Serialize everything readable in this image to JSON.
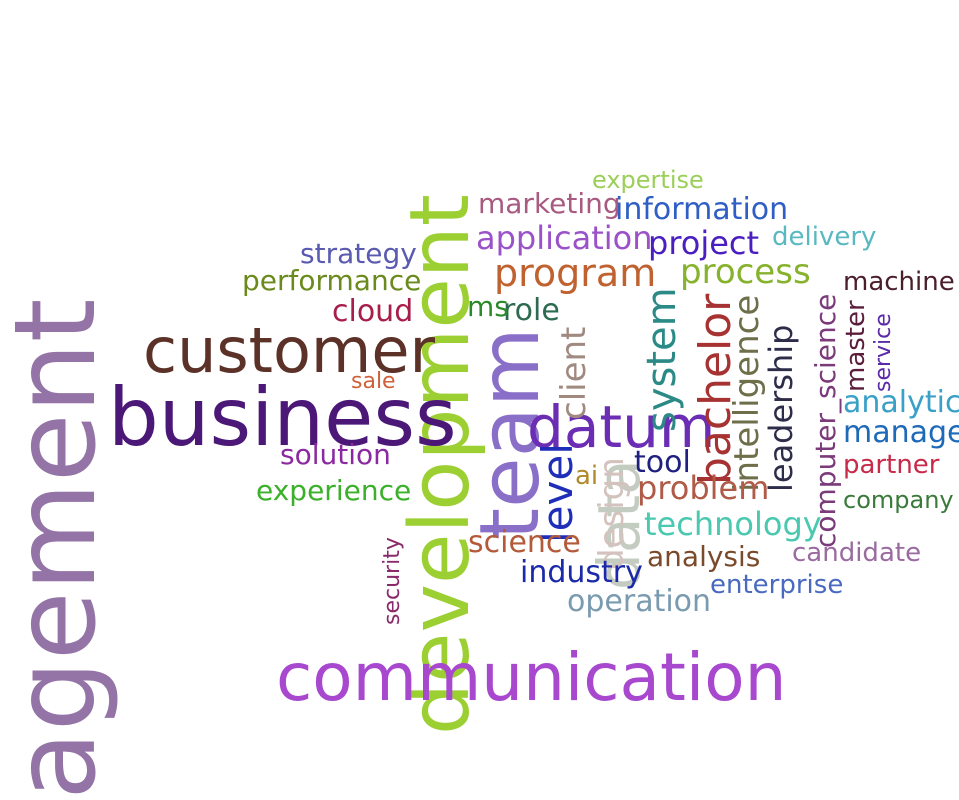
{
  "words": [
    {
      "text": "agement",
      "color": "#9474a6",
      "rotated": true
    },
    {
      "text": "development",
      "color": "#9bcf32",
      "rotated": true
    },
    {
      "text": "communication",
      "color": "#a748cf",
      "rotated": false
    },
    {
      "text": "business",
      "color": "#4b1878",
      "rotated": false
    },
    {
      "text": "customer",
      "color": "#5c3228",
      "rotated": false
    },
    {
      "text": "team",
      "color": "#8a6fc9",
      "rotated": true
    },
    {
      "text": "datum",
      "color": "#6b2db3",
      "rotated": false
    },
    {
      "text": "data",
      "color": "#c4ccc1",
      "rotated": true
    },
    {
      "text": "level",
      "color": "#1f2eb8",
      "rotated": true
    },
    {
      "text": "bachelor",
      "color": "#a63232",
      "rotated": true
    },
    {
      "text": "system",
      "color": "#2b8a86",
      "rotated": true
    },
    {
      "text": "intelligence",
      "color": "#6e6e4a",
      "rotated": true
    },
    {
      "text": "leadership",
      "color": "#2d2d4a",
      "rotated": true
    },
    {
      "text": "program",
      "color": "#c0622f",
      "rotated": false
    },
    {
      "text": "process",
      "color": "#86b22d",
      "rotated": false
    },
    {
      "text": "client",
      "color": "#a08a80",
      "rotated": true
    },
    {
      "text": "design",
      "color": "#d3c2bd",
      "rotated": true
    },
    {
      "text": "computer_science",
      "color": "#7b3a7a",
      "rotated": true
    },
    {
      "text": "technology",
      "color": "#4ac9b0",
      "rotated": false
    },
    {
      "text": "problem",
      "color": "#b05a48",
      "rotated": false
    },
    {
      "text": "application",
      "color": "#9b52c8",
      "rotated": false
    },
    {
      "text": "information",
      "color": "#2f5fc4",
      "rotated": false
    },
    {
      "text": "project",
      "color": "#4a1ec0",
      "rotated": false
    },
    {
      "text": "analysis",
      "color": "#7a4a2a",
      "rotated": false
    },
    {
      "text": "industry",
      "color": "#1b2aa8",
      "rotated": false
    },
    {
      "text": "science",
      "color": "#b35a3a",
      "rotated": false
    },
    {
      "text": "tool",
      "color": "#1f2080",
      "rotated": false
    },
    {
      "text": "experience",
      "color": "#3bb02a",
      "rotated": false
    },
    {
      "text": "cloud",
      "color": "#a81e4a",
      "rotated": false
    },
    {
      "text": "role",
      "color": "#2d6a50",
      "rotated": false
    },
    {
      "text": "ms",
      "color": "#2a8a2a",
      "rotated": false
    },
    {
      "text": "performance",
      "color": "#6b8a1e",
      "rotated": false
    },
    {
      "text": "strategy",
      "color": "#5a5ab0",
      "rotated": false
    },
    {
      "text": "marketing",
      "color": "#a85a80",
      "rotated": false
    },
    {
      "text": "expertise",
      "color": "#9bcf5a",
      "rotated": false
    },
    {
      "text": "delivery",
      "color": "#5ab8c0",
      "rotated": false
    },
    {
      "text": "machine",
      "color": "#4a1e2a",
      "rotated": false
    },
    {
      "text": "master",
      "color": "#5a1e3a",
      "rotated": true
    },
    {
      "text": "service",
      "color": "#5a2aa8",
      "rotated": true
    },
    {
      "text": "analytic",
      "color": "#3aa0c8",
      "rotated": false
    },
    {
      "text": "manage",
      "color": "#1e6ab8",
      "rotated": false
    },
    {
      "text": "partner",
      "color": "#c82a4a",
      "rotated": false
    },
    {
      "text": "company",
      "color": "#3a7a3a",
      "rotated": false
    },
    {
      "text": "candidate",
      "color": "#9a6aa0",
      "rotated": false
    },
    {
      "text": "enterprise",
      "color": "#4a6ac0",
      "rotated": false
    },
    {
      "text": "operation",
      "color": "#7a9ab0",
      "rotated": false
    },
    {
      "text": "solution",
      "color": "#8a2aa0",
      "rotated": false
    },
    {
      "text": "sale",
      "color": "#d0603a",
      "rotated": false
    },
    {
      "text": "security",
      "color": "#8a2a6a",
      "rotated": true
    },
    {
      "text": "ai",
      "color": "#b08a2a",
      "rotated": false
    }
  ]
}
